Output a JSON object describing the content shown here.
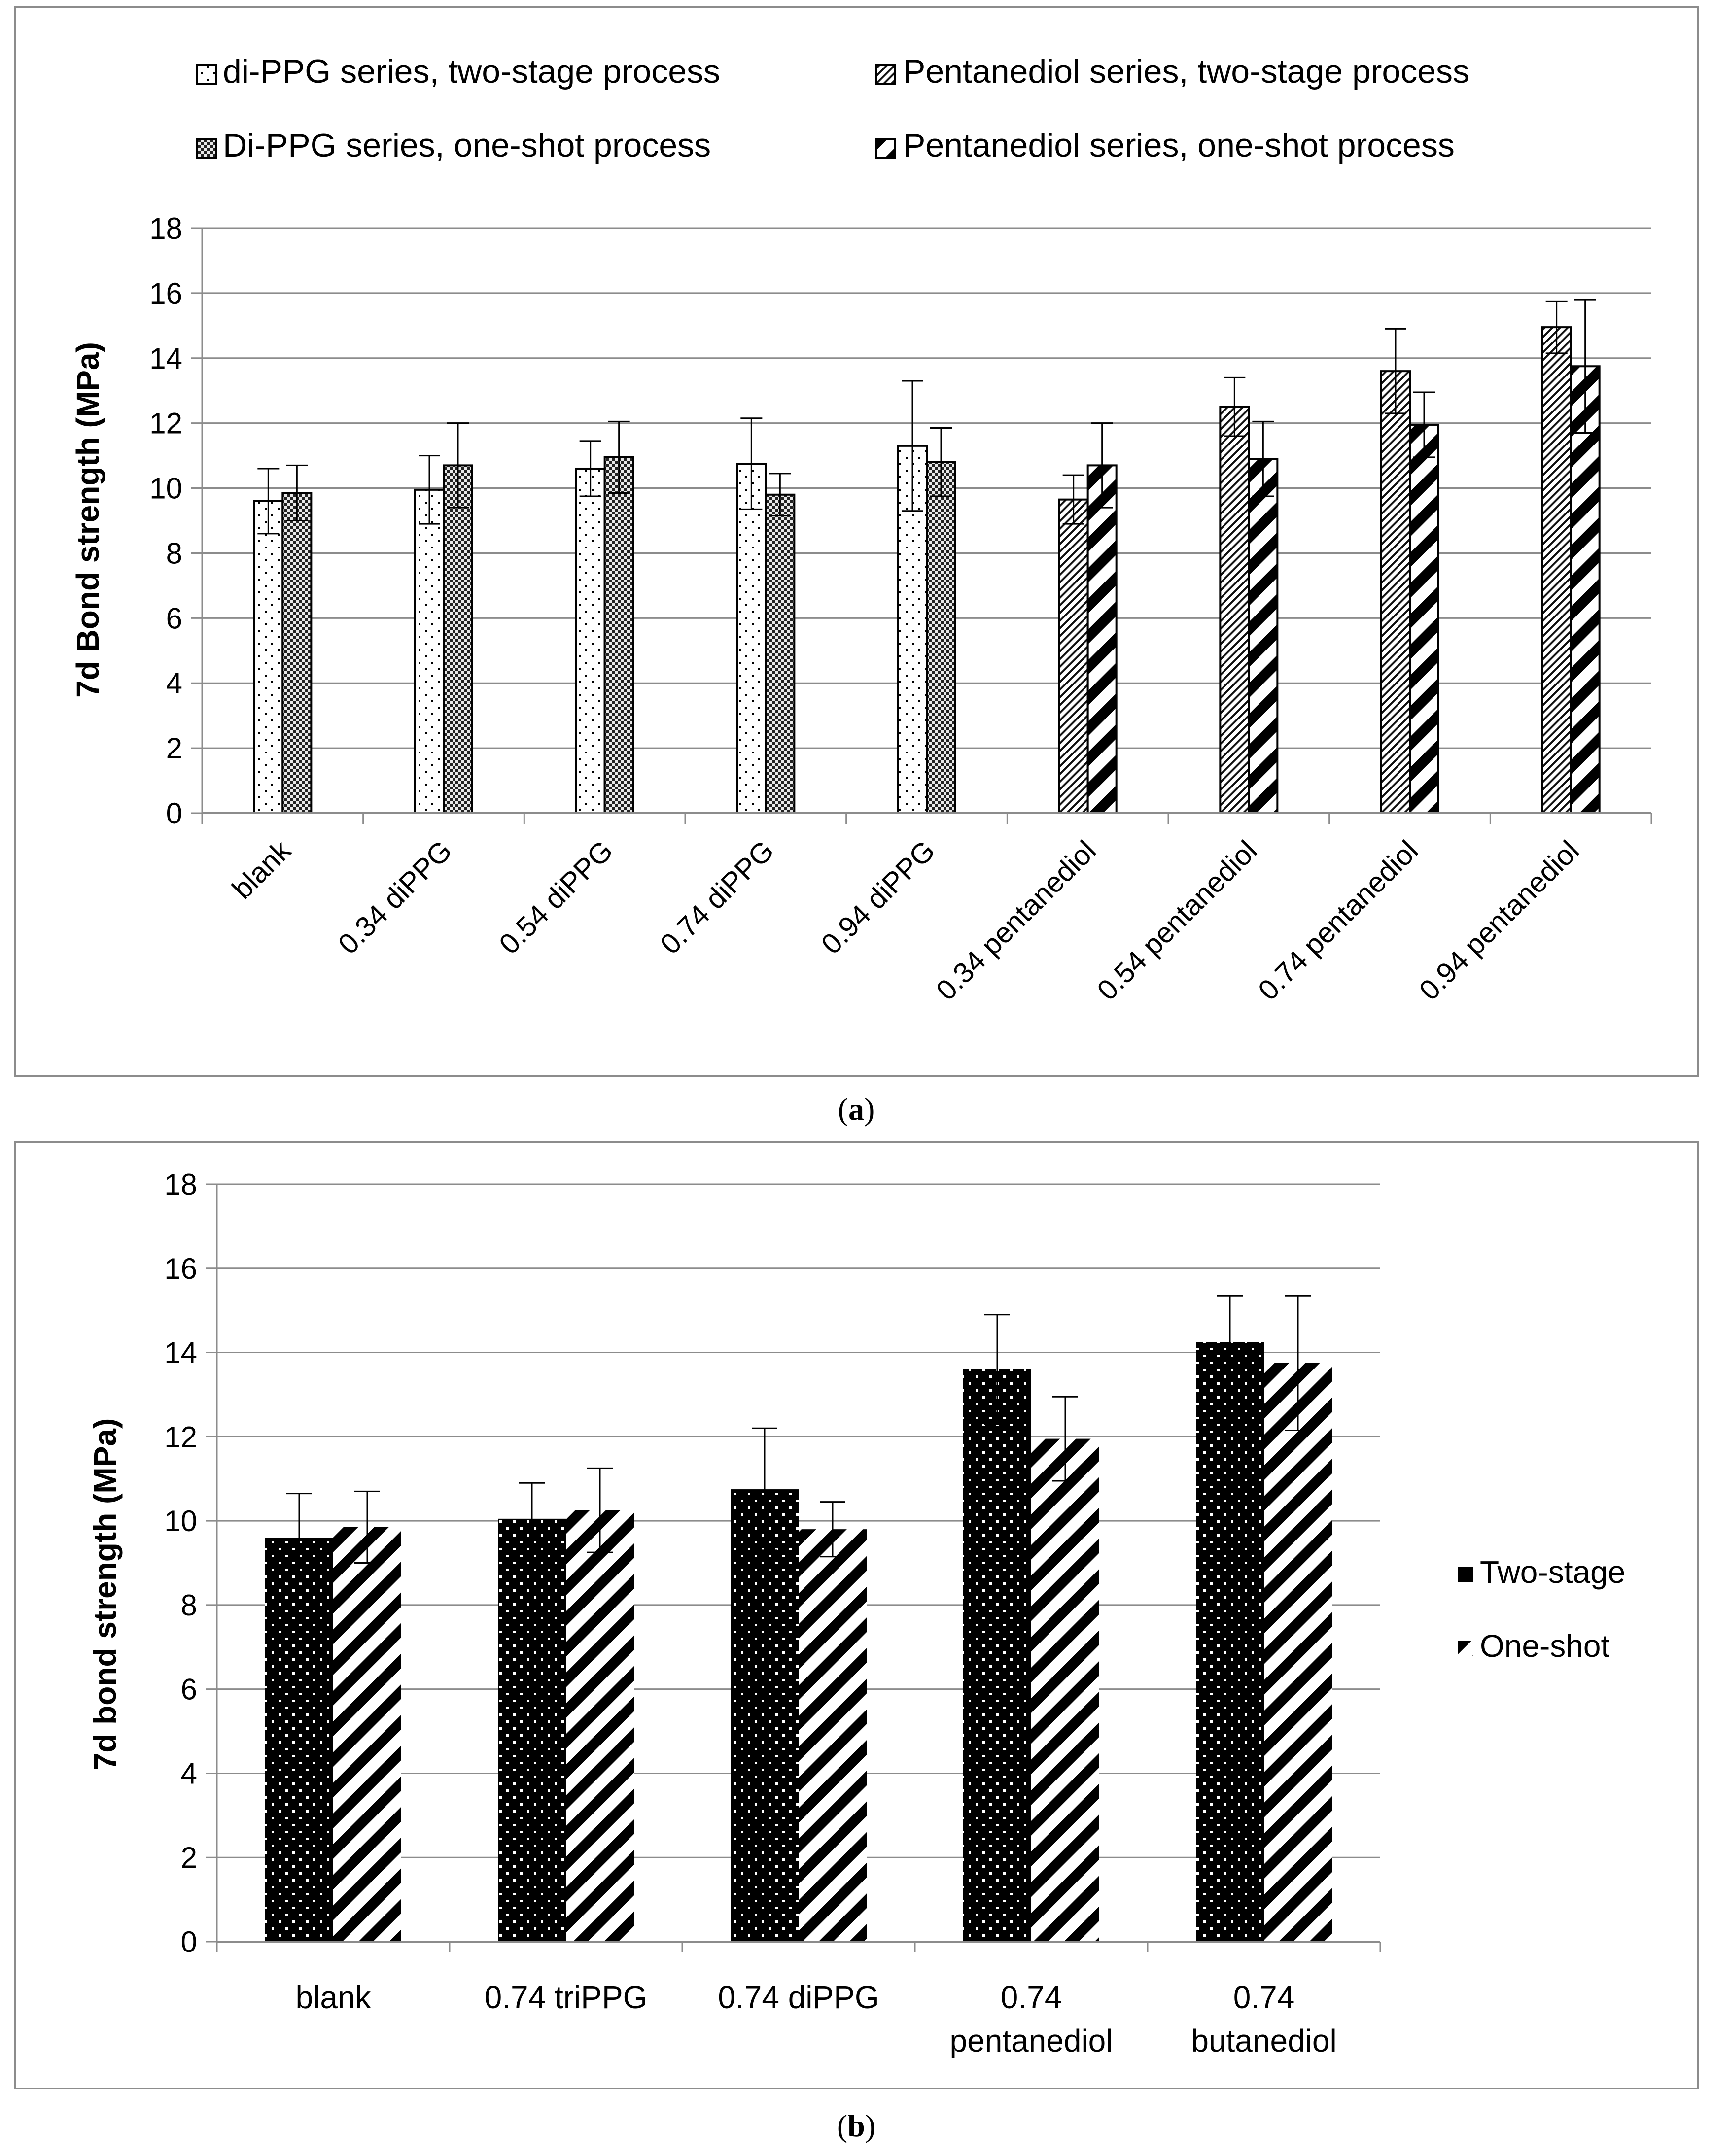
{
  "chart_data": [
    {
      "id": "a",
      "type": "bar",
      "caption": "a",
      "ylabel": "7d Bond strength (MPa)",
      "xlabel": "",
      "ylim": [
        0,
        18
      ],
      "ytick_step": 2,
      "yticks": [
        "0",
        "2",
        "4",
        "6",
        "8",
        "10",
        "12",
        "14",
        "16",
        "18"
      ],
      "grid": true,
      "legend_position": "top",
      "categories": [
        "blank",
        "0.34 diPPG",
        "0.54 diPPG",
        "0.74 diPPG",
        "0.94 diPPG",
        "0.34 pentanediol",
        "0.54 pentanediol",
        "0.74 pentanediol",
        "0.94 pentanediol"
      ],
      "series": [
        {
          "name": "di-PPG series, two-stage process",
          "pattern": "dots-on-white",
          "values": [
            9.6,
            9.95,
            10.6,
            10.75,
            11.3,
            null,
            null,
            null,
            null
          ],
          "errors": [
            1.0,
            1.05,
            0.85,
            1.4,
            2.0,
            null,
            null,
            null,
            null
          ]
        },
        {
          "name": "Di-PPG series, one-shot process",
          "pattern": "checker",
          "values": [
            9.85,
            10.7,
            10.95,
            9.8,
            10.8,
            null,
            null,
            null,
            null
          ],
          "errors": [
            0.85,
            1.3,
            1.1,
            0.65,
            1.05,
            null,
            null,
            null,
            null
          ]
        },
        {
          "name": "Pentanediol series, two-stage process",
          "pattern": "fine-diagonal",
          "values": [
            null,
            null,
            null,
            null,
            null,
            9.65,
            12.5,
            13.6,
            14.95
          ],
          "errors": [
            null,
            null,
            null,
            null,
            null,
            0.75,
            0.9,
            1.3,
            0.8
          ]
        },
        {
          "name": "Pentanediol series, one-shot process",
          "pattern": "thick-diagonal",
          "values": [
            null,
            null,
            null,
            null,
            null,
            10.7,
            10.9,
            11.95,
            13.75
          ],
          "errors": [
            null,
            null,
            null,
            null,
            null,
            1.3,
            1.15,
            1.0,
            2.05
          ]
        }
      ]
    },
    {
      "id": "b",
      "type": "bar",
      "caption": "b",
      "ylabel": "7d bond strength (MPa)",
      "xlabel": "",
      "ylim": [
        0,
        18
      ],
      "ytick_step": 2,
      "yticks": [
        "0",
        "2",
        "4",
        "6",
        "8",
        "10",
        "12",
        "14",
        "16",
        "18"
      ],
      "grid": true,
      "legend_position": "right",
      "categories": [
        [
          "blank"
        ],
        [
          "0.74 triPPG"
        ],
        [
          "0.74 diPPG"
        ],
        [
          "0.74",
          "pentanediol"
        ],
        [
          "0.74",
          "butanediol"
        ]
      ],
      "series": [
        {
          "name": "Two-stage",
          "pattern": "white-dots-on-black",
          "values": [
            9.6,
            10.05,
            10.75,
            13.6,
            14.25
          ],
          "errors": [
            1.05,
            0.85,
            1.45,
            1.3,
            1.1
          ]
        },
        {
          "name": "One-shot",
          "pattern": "thick-diagonal",
          "values": [
            9.85,
            10.25,
            9.8,
            11.95,
            13.75
          ],
          "errors": [
            0.85,
            1.0,
            0.65,
            1.0,
            1.6
          ]
        }
      ]
    }
  ]
}
